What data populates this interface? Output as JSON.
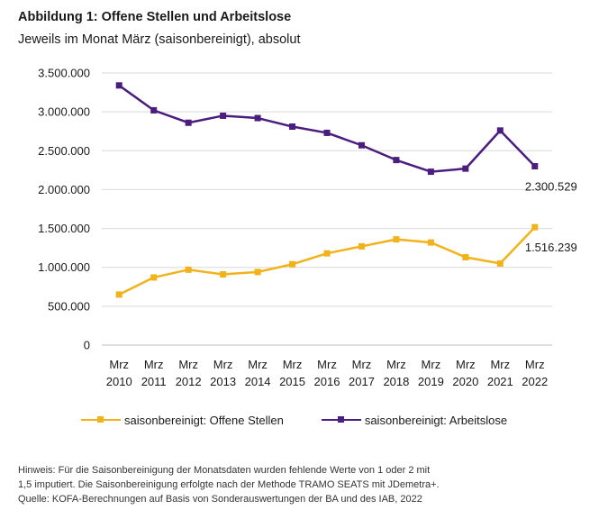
{
  "header": {
    "title": "Abbildung 1: Offene Stellen und Arbeitslose",
    "subtitle": "Jeweils im Monat März (saisonbereinigt), absolut"
  },
  "colors": {
    "offene": "#f2b21a",
    "arbeitslose": "#4a1d7f",
    "grid": "#d9d9d9",
    "axis": "#bfbfbf"
  },
  "chart_data": {
    "type": "line",
    "x": [
      "Mrz 2010",
      "Mrz 2011",
      "Mrz 2012",
      "Mrz 2013",
      "Mrz 2014",
      "Mrz 2015",
      "Mrz 2016",
      "Mrz 2017",
      "Mrz 2018",
      "Mrz 2019",
      "Mrz 2020",
      "Mrz 2021",
      "Mrz 2022"
    ],
    "x_ticks": [
      {
        "line1": "Mrz",
        "line2": "2010"
      },
      {
        "line1": "Mrz",
        "line2": "2011"
      },
      {
        "line1": "Mrz",
        "line2": "2012"
      },
      {
        "line1": "Mrz",
        "line2": "2013"
      },
      {
        "line1": "Mrz",
        "line2": "2014"
      },
      {
        "line1": "Mrz",
        "line2": "2015"
      },
      {
        "line1": "Mrz",
        "line2": "2016"
      },
      {
        "line1": "Mrz",
        "line2": "2017"
      },
      {
        "line1": "Mrz",
        "line2": "2018"
      },
      {
        "line1": "Mrz",
        "line2": "2019"
      },
      {
        "line1": "Mrz",
        "line2": "2020"
      },
      {
        "line1": "Mrz",
        "line2": "2021"
      },
      {
        "line1": "Mrz",
        "line2": "2022"
      }
    ],
    "y_ticks": [
      {
        "value": 0,
        "label": "0"
      },
      {
        "value": 500000,
        "label": "500.000"
      },
      {
        "value": 1000000,
        "label": "1.000.000"
      },
      {
        "value": 1500000,
        "label": "1.500.000"
      },
      {
        "value": 2000000,
        "label": "2.000.000"
      },
      {
        "value": 2500000,
        "label": "2.500.000"
      },
      {
        "value": 3000000,
        "label": "3.000.000"
      },
      {
        "value": 3500000,
        "label": "3.500.000"
      }
    ],
    "ylim": [
      0,
      3500000
    ],
    "grid": true,
    "legend_position": "bottom",
    "series": [
      {
        "name": "saisonbereinigt: Offene Stellen",
        "color_key": "offene",
        "values": [
          650000,
          870000,
          970000,
          910000,
          940000,
          1040000,
          1180000,
          1270000,
          1360000,
          1320000,
          1130000,
          1050000,
          1516239
        ],
        "end_label": "1.516.239"
      },
      {
        "name": "saisonbereinigt: Arbeitslose",
        "color_key": "arbeitslose",
        "values": [
          3340000,
          3020000,
          2860000,
          2950000,
          2920000,
          2810000,
          2730000,
          2570000,
          2380000,
          2230000,
          2270000,
          2760000,
          2300529
        ],
        "end_label": "2.300.529"
      }
    ]
  },
  "footer": {
    "note_line1": "Hinweis: Für die Saisonbereinigung der Monatsdaten wurden fehlende Werte von 1 oder 2 mit",
    "note_line2": "1,5 imputiert. Die Saisonbereinigung erfolgte nach der Methode TRAMO SEATS mit JDemetra+.",
    "source": "Quelle: KOFA-Berechnungen auf Basis von Sonderauswertungen der BA und des IAB, 2022"
  }
}
